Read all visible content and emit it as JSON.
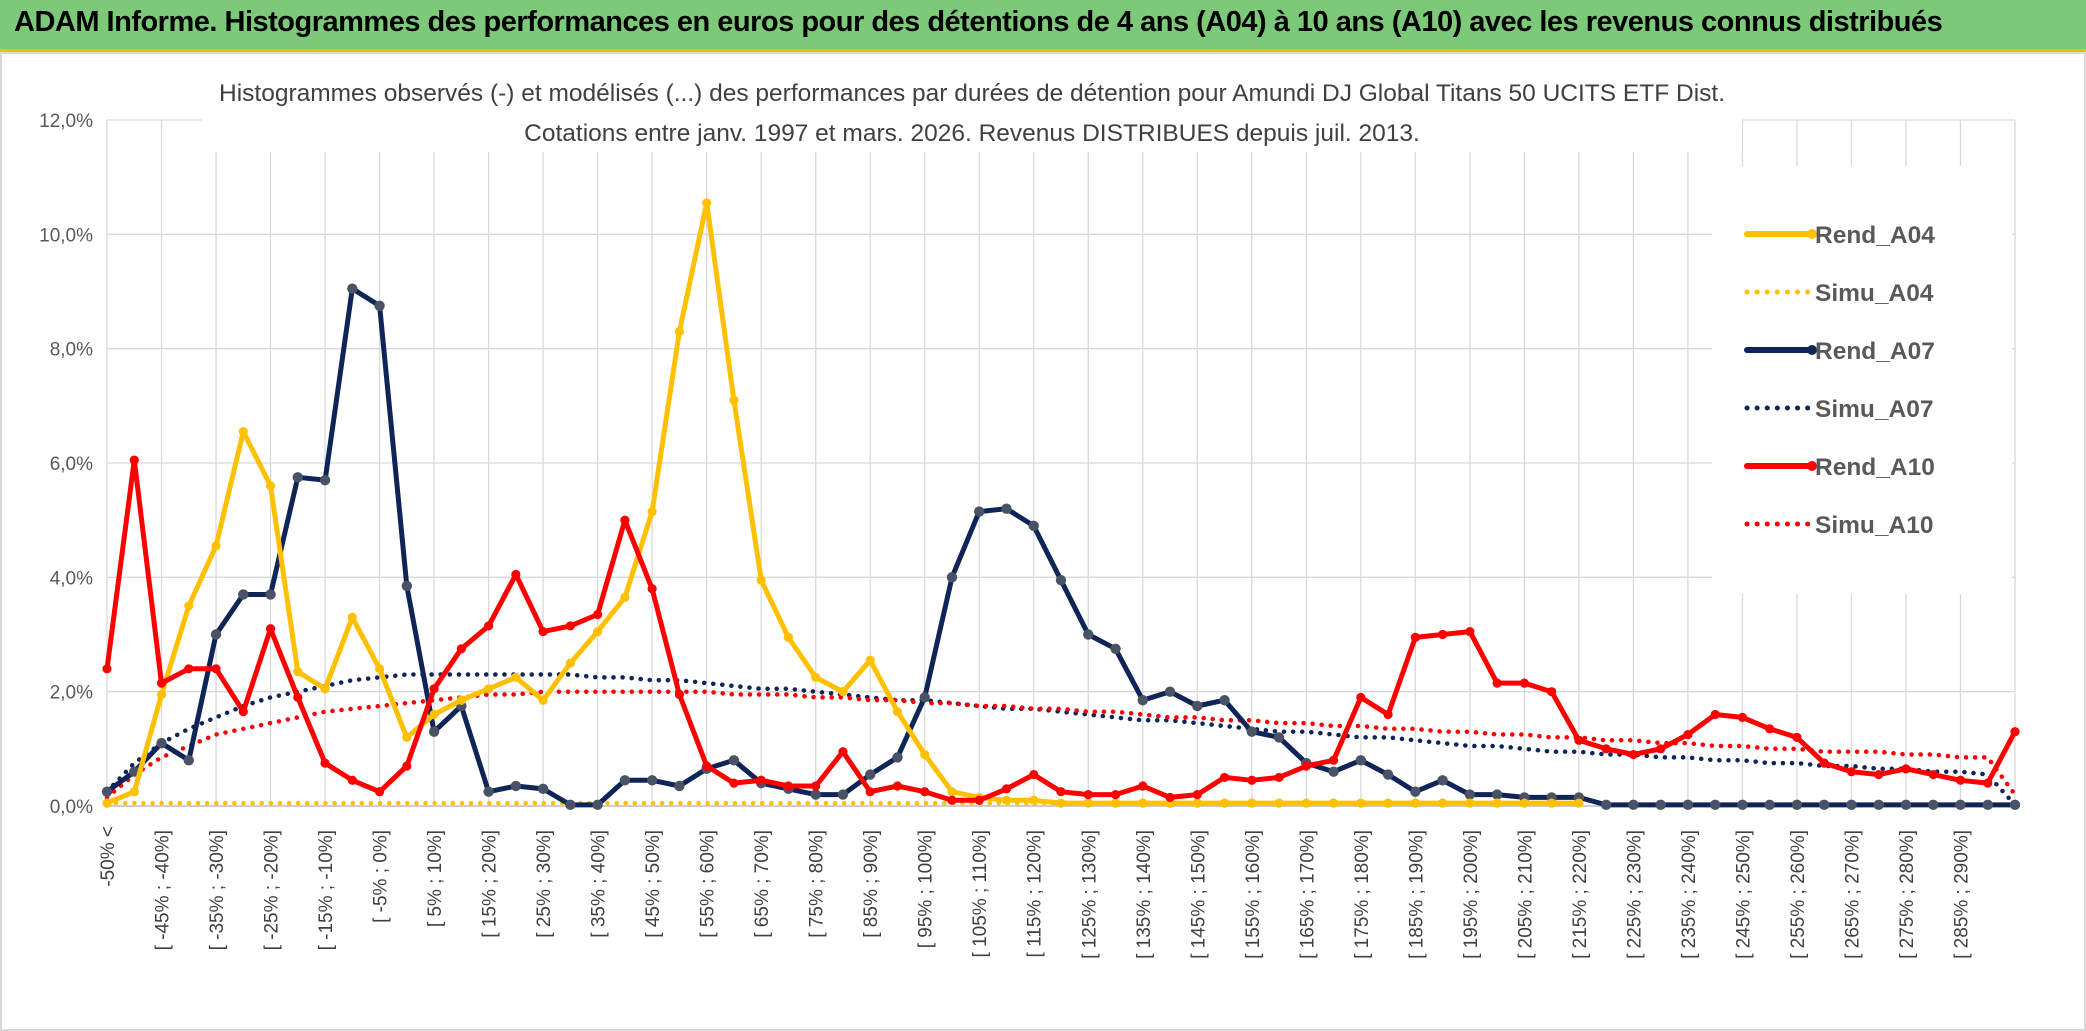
{
  "banner": {
    "text": "ADAM Informe. Histogrammes des performances en euros pour des détentions de 4 ans (A04) à 10 ans (A10) avec les revenus connus distribués"
  },
  "chart_data": {
    "type": "line",
    "title": "Histogrammes observés (-) et modélisés (...) des performances par durées de détention pour Amundi DJ Global Titans 50 UCITS ETF Dist.",
    "subtitle": "Cotations entre janv. 1997 et mars. 2026. Revenus DISTRIBUES depuis juil. 2013.",
    "xlabel": "",
    "ylabel": "",
    "ylim": [
      0,
      12
    ],
    "y_ticks": [
      "0,0%",
      "2,0%",
      "4,0%",
      "6,0%",
      "8,0%",
      "10,0%",
      "12,0%"
    ],
    "grid": true,
    "legend_position": "right",
    "categories": [
      "-50% <",
      "[ -50% ; -45%]",
      "[ -45% ; -40%]",
      "[ -40% ; -35%]",
      "[ -35% ; -30%]",
      "[ -30% ; -25%]",
      "[ -25% ; -20%]",
      "[ -20% ; -15%]",
      "[ -15% ; -10%]",
      "[ -10% ; -5%]",
      "[ -5% ; 0%]",
      "[ 0% ; 5%]",
      "[ 5% ; 10%]",
      "[ 10% ; 15%]",
      "[ 15% ; 20%]",
      "[ 20% ; 25%]",
      "[ 25% ; 30%]",
      "[ 30% ; 35%]",
      "[ 35% ; 40%]",
      "[ 40% ; 45%]",
      "[ 45% ; 50%]",
      "[ 50% ; 55%]",
      "[ 55% ; 60%]",
      "[ 60% ; 65%]",
      "[ 65% ; 70%]",
      "[ 70% ; 75%]",
      "[ 75% ; 80%]",
      "[ 80% ; 85%]",
      "[ 85% ; 90%]",
      "[ 90% ; 95%]",
      "[ 95% ; 100%]",
      "[ 100% ; 105%]",
      "[ 105% ; 110%]",
      "[ 110% ; 115%]",
      "[ 115% ; 120%]",
      "[ 120% ; 125%]",
      "[ 125% ; 130%]",
      "[ 130% ; 135%]",
      "[ 135% ; 140%]",
      "[ 140% ; 145%]",
      "[ 145% ; 150%]",
      "[ 150% ; 155%]",
      "[ 155% ; 160%]",
      "[ 160% ; 165%]",
      "[ 165% ; 170%]",
      "[ 170% ; 175%]",
      "[ 175% ; 180%]",
      "[ 180% ; 185%]",
      "[ 185% ; 190%]",
      "[ 190% ; 195%]",
      "[ 195% ; 200%]",
      "[ 200% ; 205%]",
      "[ 205% ; 210%]",
      "[ 210% ; 215%]",
      "[ 215% ; 220%]",
      "[ 220% ; 225%]",
      "[ 225% ; 230%]",
      "[ 230% ; 235%]",
      "[ 235% ; 240%]",
      "[ 240% ; 245%]",
      "[ 245% ; 250%]",
      "[ 250% ; 255%]",
      "[ 255% ; 260%]",
      "[ 260% ; 265%]",
      "[ 265% ; 270%]",
      "[ 270% ; 275%]",
      "[ 275% ; 280%]",
      "[ 280% ; 285%]",
      "[ 285% ; 290%]",
      "[ 290% ; 295%]",
      "[ 295% ; 300%]"
    ],
    "x_tick_labels_shown": [
      "-50% <",
      "[ -45% ; -40%]",
      "[ -35% ; -30%]",
      "[ -25% ; -20%]",
      "[ -15% ; -10%]",
      "[ -5% ; 0%]",
      "[ 5% ; 10%]",
      "[ 15% ; 20%]",
      "[ 25% ; 30%]",
      "[ 35% ; 40%]",
      "[ 45% ; 50%]",
      "[ 55% ; 60%]",
      "[ 65% ; 70%]",
      "[ 75% ; 80%]",
      "[ 85% ; 90%]",
      "[ 95% ; 100%]",
      "[ 105% ; 110%]",
      "[ 115% ; 120%]",
      "[ 125% ; 130%]",
      "[ 135% ; 140%]",
      "[ 145% ; 150%]",
      "[ 155% ; 160%]",
      "[ 165% ; 170%]",
      "[ 175% ; 180%]",
      "[ 185% ; 190%]",
      "[ 195% ; 200%]",
      "[ 205% ; 210%]",
      "[ 215% ; 220%]",
      "[ 225% ; 230%]",
      "[ 235% ; 240%]",
      "[ 245% ; 250%]",
      "[ 255% ; 260%]",
      "[ 265% ; 270%]",
      "[ 275% ; 280%]",
      "[ 285% ; 290%]"
    ],
    "series": [
      {
        "name": "Rend_A04",
        "style": "solid",
        "color": "#ffc000",
        "values": [
          0.05,
          0.25,
          1.95,
          3.5,
          4.55,
          6.55,
          5.6,
          2.35,
          2.05,
          3.3,
          2.4,
          1.2,
          1.6,
          1.85,
          2.05,
          2.25,
          1.85,
          2.5,
          3.05,
          3.65,
          5.15,
          8.3,
          10.55,
          7.1,
          3.95,
          2.95,
          2.25,
          2.0,
          2.55,
          1.65,
          0.9,
          0.25,
          0.15,
          0.1,
          0.1,
          0.05,
          0.05,
          0.05,
          0.05,
          0.05,
          0.05,
          0.05,
          0.05,
          0.05,
          0.05,
          0.05,
          0.05,
          0.05,
          0.05,
          0.05,
          0.05,
          0.05,
          0.05,
          0.05,
          0.05,
          null,
          null,
          null,
          null,
          null,
          null,
          null,
          null,
          null,
          null,
          null,
          null,
          null,
          null,
          null,
          null
        ]
      },
      {
        "name": "Simu_A04",
        "style": "dotted",
        "color": "#ffc000",
        "values": [
          0.05,
          0.05,
          0.05,
          0.05,
          0.05,
          0.05,
          0.05,
          0.05,
          0.05,
          0.05,
          0.05,
          0.05,
          0.05,
          0.05,
          0.05,
          0.05,
          0.05,
          0.05,
          0.05,
          0.05,
          0.05,
          0.05,
          0.05,
          0.05,
          0.05,
          0.05,
          0.05,
          0.05,
          0.05,
          0.05,
          0.05,
          0.05,
          0.05,
          0.05,
          0.05,
          0.05,
          0.05,
          0.05,
          0.05,
          0.05,
          0.05,
          0.05,
          0.05,
          0.05,
          0.05,
          0.05,
          0.05,
          0.05,
          0.05,
          0.05,
          0.05,
          0.05,
          0.05,
          0.05,
          0.05,
          null,
          null,
          null,
          null,
          null,
          null,
          null,
          null,
          null,
          null,
          null,
          null,
          null,
          null,
          null,
          null
        ]
      },
      {
        "name": "Rend_A07",
        "style": "solid",
        "color": "#0f2557",
        "values": [
          0.25,
          0.6,
          1.1,
          0.8,
          3.0,
          3.7,
          3.7,
          5.75,
          5.7,
          9.05,
          8.75,
          3.85,
          1.3,
          1.75,
          0.25,
          0.35,
          0.3,
          0.02,
          0.02,
          0.45,
          0.45,
          0.35,
          0.65,
          0.8,
          0.4,
          0.3,
          0.2,
          0.2,
          0.55,
          0.85,
          1.9,
          4.0,
          5.15,
          5.2,
          4.9,
          3.95,
          3.0,
          2.75,
          1.85,
          2.0,
          1.75,
          1.85,
          1.3,
          1.2,
          0.75,
          0.6,
          0.8,
          0.55,
          0.25,
          0.45,
          0.2,
          0.2,
          0.15,
          0.15,
          0.15,
          0.02,
          0.02,
          0.02,
          0.02,
          0.02,
          0.02,
          0.02,
          0.02,
          0.02,
          0.02,
          0.02,
          0.02,
          0.02,
          0.02,
          0.02,
          0.02
        ]
      },
      {
        "name": "Simu_A07",
        "style": "dotted",
        "color": "#0f2557",
        "values": [
          0.25,
          0.75,
          1.1,
          1.35,
          1.55,
          1.75,
          1.9,
          2.0,
          2.1,
          2.2,
          2.25,
          2.3,
          2.3,
          2.3,
          2.3,
          2.3,
          2.3,
          2.3,
          2.25,
          2.25,
          2.2,
          2.2,
          2.15,
          2.1,
          2.05,
          2.05,
          2.0,
          1.95,
          1.9,
          1.85,
          1.85,
          1.8,
          1.75,
          1.7,
          1.7,
          1.65,
          1.6,
          1.55,
          1.5,
          1.5,
          1.45,
          1.4,
          1.35,
          1.3,
          1.3,
          1.25,
          1.2,
          1.2,
          1.15,
          1.1,
          1.05,
          1.05,
          1.0,
          0.95,
          0.95,
          0.9,
          0.9,
          0.85,
          0.85,
          0.8,
          0.8,
          0.75,
          0.75,
          0.7,
          0.7,
          0.65,
          0.65,
          0.6,
          0.6,
          0.55,
          0.02
        ]
      },
      {
        "name": "Rend_A10",
        "style": "solid",
        "color": "#ff0000",
        "values": [
          2.4,
          6.05,
          2.15,
          2.4,
          2.4,
          1.65,
          3.1,
          1.9,
          0.75,
          0.45,
          0.25,
          0.7,
          2.05,
          2.75,
          3.15,
          4.05,
          3.05,
          3.15,
          3.35,
          5.0,
          3.8,
          1.95,
          0.7,
          0.4,
          0.45,
          0.35,
          0.35,
          0.95,
          0.25,
          0.35,
          0.25,
          0.1,
          0.1,
          0.3,
          0.55,
          0.25,
          0.2,
          0.2,
          0.35,
          0.15,
          0.2,
          0.5,
          0.45,
          0.5,
          0.7,
          0.8,
          1.9,
          1.6,
          2.95,
          3.0,
          3.05,
          2.15,
          2.15,
          2.0,
          1.15,
          1.0,
          0.9,
          1.0,
          1.25,
          1.6,
          1.55,
          1.35,
          1.2,
          0.75,
          0.6,
          0.55,
          0.65,
          0.55,
          0.45,
          0.4,
          1.3
        ]
      },
      {
        "name": "Simu_A10",
        "style": "dotted",
        "color": "#ff0000",
        "values": [
          0.15,
          0.55,
          0.85,
          1.05,
          1.25,
          1.35,
          1.45,
          1.55,
          1.65,
          1.7,
          1.75,
          1.8,
          1.85,
          1.9,
          1.95,
          1.95,
          2.0,
          2.0,
          2.0,
          2.0,
          2.0,
          2.0,
          2.0,
          1.95,
          1.95,
          1.95,
          1.9,
          1.9,
          1.85,
          1.85,
          1.8,
          1.8,
          1.75,
          1.75,
          1.7,
          1.7,
          1.65,
          1.65,
          1.6,
          1.55,
          1.55,
          1.5,
          1.5,
          1.45,
          1.45,
          1.4,
          1.4,
          1.35,
          1.35,
          1.3,
          1.3,
          1.25,
          1.25,
          1.2,
          1.2,
          1.15,
          1.15,
          1.1,
          1.1,
          1.05,
          1.05,
          1.0,
          1.0,
          0.95,
          0.95,
          0.95,
          0.9,
          0.9,
          0.85,
          0.85,
          0.2
        ]
      }
    ]
  }
}
